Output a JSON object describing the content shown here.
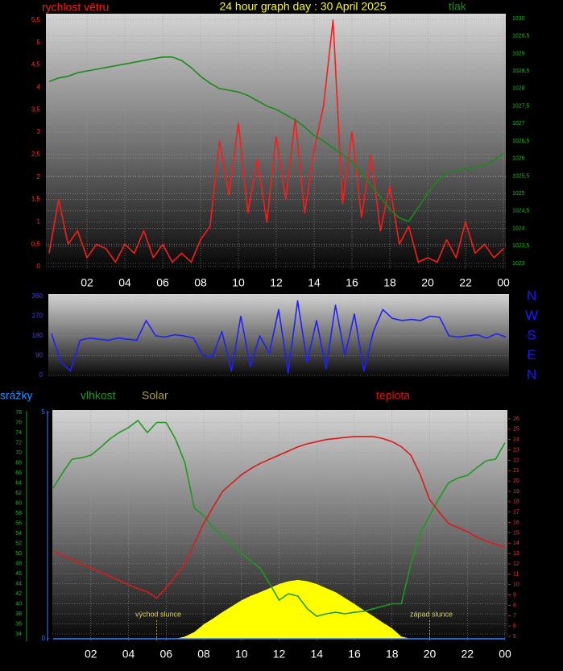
{
  "chart_data": [
    {
      "type": "line",
      "title": "24 hour graph day : 30 April 2025",
      "x": [
        0,
        0.5,
        1,
        1.5,
        2,
        2.5,
        3,
        3.5,
        4,
        4.5,
        5,
        5.5,
        6,
        6.5,
        7,
        7.5,
        8,
        8.5,
        9,
        9.5,
        10,
        10.5,
        11,
        11.5,
        12,
        12.5,
        13,
        13.5,
        14,
        14.5,
        15,
        15.5,
        16,
        16.5,
        17,
        17.5,
        18,
        18.5,
        19,
        19.5,
        20,
        20.5,
        21,
        21.5,
        22,
        22.5,
        23,
        23.5,
        24
      ],
      "xlim": [
        0,
        24
      ],
      "xticks": [
        {
          "value": 2,
          "label": "02"
        },
        {
          "value": 4,
          "label": "04"
        },
        {
          "value": 6,
          "label": "06"
        },
        {
          "value": 8,
          "label": "08"
        },
        10,
        12,
        14,
        16,
        18,
        20,
        22,
        {
          "value": 24,
          "label": "00"
        }
      ],
      "ylim": [
        0,
        5.5
      ],
      "yticks": [
        0,
        {
          "value": 0.5,
          "label": "0,5"
        },
        1,
        {
          "value": 1.5,
          "label": "1,5"
        },
        2,
        {
          "value": 2.5,
          "label": "2,5"
        },
        3,
        {
          "value": 3.5,
          "label": "3,5"
        },
        4,
        {
          "value": 4.5,
          "label": "4,5"
        },
        5,
        {
          "value": 5.5,
          "label": "5,5"
        }
      ],
      "y2lim": [
        1023,
        1030
      ],
      "y2ticks": [
        1023,
        {
          "value": 1023.5,
          "label": "1023,5"
        },
        1024,
        {
          "value": 1024.5,
          "label": "1024,5"
        },
        1025,
        {
          "value": 1025.5,
          "label": "1025,5"
        },
        1026,
        {
          "value": 1026.5,
          "label": "1026,5"
        },
        1027,
        {
          "value": 1027.5,
          "label": "1027,5"
        },
        1028,
        {
          "value": 1028.5,
          "label": "1028,5"
        },
        1029,
        {
          "value": 1029.5,
          "label": "1029,5"
        },
        1030
      ],
      "grid": true,
      "series": [
        {
          "name": "rychlost větru",
          "color": "#ff1a1a",
          "values": [
            0.3,
            1.5,
            0.5,
            0.8,
            0.2,
            0.5,
            0.4,
            0.1,
            0.5,
            0.3,
            0.8,
            0.2,
            0.5,
            0.1,
            0.3,
            0.1,
            0.6,
            0.9,
            2.8,
            1.6,
            3.2,
            1.2,
            2.4,
            1.0,
            2.9,
            1.5,
            3.3,
            1.2,
            2.6,
            3.6,
            5.5,
            1.4,
            3.0,
            1.1,
            2.5,
            0.8,
            1.8,
            0.5,
            0.9,
            0.1,
            0.2,
            0.1,
            0.6,
            0.2,
            1.0,
            0.3,
            0.5,
            0.2,
            0.4
          ]
        },
        {
          "name": "tlak",
          "color": "#1a8a1a",
          "axis": "y2",
          "values": [
            1028.2,
            1028.3,
            1028.35,
            1028.45,
            1028.5,
            1028.55,
            1028.6,
            1028.65,
            1028.7,
            1028.75,
            1028.8,
            1028.85,
            1028.9,
            1028.9,
            1028.8,
            1028.6,
            1028.35,
            1028.15,
            1028.0,
            1027.95,
            1027.9,
            1027.8,
            1027.65,
            1027.5,
            1027.4,
            1027.25,
            1027.1,
            1026.9,
            1026.65,
            1026.5,
            1026.3,
            1026.1,
            1025.9,
            1025.6,
            1025.25,
            1024.9,
            1024.55,
            1024.3,
            1024.2,
            1024.6,
            1025.0,
            1025.35,
            1025.6,
            1025.65,
            1025.7,
            1025.75,
            1025.8,
            1025.95,
            1026.15
          ]
        }
      ]
    },
    {
      "type": "line",
      "x": [
        0,
        0.5,
        1,
        1.5,
        2,
        2.5,
        3,
        3.5,
        4,
        4.5,
        5,
        5.5,
        6,
        6.5,
        7,
        7.5,
        8,
        8.5,
        9,
        9.5,
        10,
        10.5,
        11,
        11.5,
        12,
        12.5,
        13,
        13.5,
        14,
        14.5,
        15,
        15.5,
        16,
        16.5,
        17,
        17.5,
        18,
        18.5,
        19,
        19.5,
        20,
        20.5,
        21,
        21.5,
        22,
        22.5,
        23,
        23.5,
        24
      ],
      "xlim": [
        0,
        24
      ],
      "ylim": [
        0,
        360
      ],
      "yticks": [
        0,
        90,
        180,
        270,
        360
      ],
      "y2lim": [
        0,
        360
      ],
      "y2ticks": [
        {
          "value": 360,
          "label": "N"
        },
        {
          "value": 270,
          "label": "W"
        },
        {
          "value": 180,
          "label": "S"
        },
        {
          "value": 90,
          "label": "E"
        },
        {
          "value": 0,
          "label": "N"
        }
      ],
      "grid": true,
      "color": "#2020ff",
      "values": [
        190,
        60,
        20,
        160,
        170,
        165,
        160,
        170,
        165,
        160,
        250,
        180,
        175,
        185,
        180,
        170,
        90,
        85,
        200,
        20,
        270,
        40,
        180,
        100,
        300,
        10,
        340,
        60,
        250,
        30,
        320,
        90,
        280,
        20,
        200,
        300,
        260,
        250,
        255,
        250,
        270,
        265,
        180,
        175,
        180,
        185,
        170,
        190,
        175
      ]
    },
    {
      "type": "line",
      "x": [
        0,
        0.5,
        1,
        1.5,
        2,
        2.5,
        3,
        3.5,
        4,
        4.5,
        5,
        5.5,
        6,
        6.5,
        7,
        7.5,
        8,
        8.5,
        9,
        9.5,
        10,
        10.5,
        11,
        11.5,
        12,
        12.5,
        13,
        13.5,
        14,
        14.5,
        15,
        15.5,
        16,
        16.5,
        17,
        17.5,
        18,
        18.5,
        19,
        19.5,
        20,
        20.5,
        21,
        21.5,
        22,
        22.5,
        23,
        23.5,
        24
      ],
      "xlim": [
        0,
        24
      ],
      "xticks": [
        {
          "value": 2,
          "label": "02"
        },
        {
          "value": 4,
          "label": "04"
        },
        {
          "value": 6,
          "label": "06"
        },
        {
          "value": 8,
          "label": "08"
        },
        10,
        12,
        14,
        16,
        18,
        20,
        22,
        {
          "value": 24,
          "label": "00"
        }
      ],
      "ylim": [
        34,
        78
      ],
      "yticks": [
        34,
        36,
        38,
        40,
        42,
        44,
        46,
        48,
        50,
        52,
        54,
        56,
        58,
        60,
        62,
        64,
        66,
        68,
        70,
        72,
        74,
        76,
        78
      ],
      "y2lim": [
        5,
        26
      ],
      "y2ticks": [
        5,
        6,
        7,
        8,
        9,
        10,
        11,
        12,
        13,
        14,
        15,
        16,
        17,
        18,
        19,
        20,
        21,
        22,
        23,
        24,
        25,
        26
      ],
      "y3lim": [
        0,
        5
      ],
      "y3ticks": [
        0,
        5
      ],
      "grid": true,
      "series": [
        {
          "name": "Solar",
          "color": "#ffff00",
          "axis": "y3",
          "style": "area",
          "values": [
            0,
            0,
            0,
            0,
            0,
            0,
            0,
            0,
            0,
            0,
            0,
            0,
            0,
            0,
            0.05,
            0.15,
            0.32,
            0.45,
            0.59,
            0.72,
            0.85,
            0.95,
            1.03,
            1.12,
            1.21,
            1.27,
            1.3,
            1.27,
            1.21,
            1.12,
            1.03,
            0.9,
            0.77,
            0.63,
            0.5,
            0.36,
            0.23,
            0.05,
            0,
            0,
            0,
            0,
            0,
            0,
            0,
            0,
            0,
            0,
            0
          ]
        },
        {
          "name": "srážky",
          "color": "#3a7bff",
          "axis": "y3",
          "values": [
            0,
            0,
            0,
            0,
            0,
            0,
            0,
            0,
            0,
            0,
            0,
            0,
            0,
            0,
            0,
            0,
            0,
            0,
            0,
            0,
            0,
            0,
            0,
            0,
            0,
            0,
            0,
            0,
            0,
            0,
            0,
            0,
            0,
            0,
            0,
            0,
            0,
            0,
            0,
            0,
            0,
            0,
            0,
            0,
            0,
            0,
            0,
            0,
            0
          ]
        },
        {
          "name": "vlhkost",
          "color": "#1e9a1e",
          "values": [
            63,
            66,
            68.7,
            69,
            69.5,
            71,
            72.7,
            74,
            75,
            76.4,
            74,
            76,
            76,
            72.7,
            68,
            59,
            57.5,
            55,
            53.5,
            52,
            50,
            48.5,
            47,
            44,
            40.7,
            42,
            41.5,
            39,
            37.5,
            38,
            38.3,
            38,
            38.3,
            38.5,
            39,
            39.5,
            40,
            40,
            48,
            54,
            57.5,
            61,
            64,
            65,
            65.5,
            67,
            68.4,
            68.7,
            72
          ]
        },
        {
          "name": "teplota",
          "color": "#dd1a1a",
          "axis": "y2",
          "values": [
            13.2,
            12.8,
            12.4,
            12,
            11.6,
            11.2,
            10.8,
            10.4,
            10,
            9.6,
            9.3,
            8.7,
            9.7,
            10.8,
            12,
            14,
            15.9,
            17.5,
            19,
            19.8,
            20.6,
            21.2,
            21.7,
            22.1,
            22.5,
            22.9,
            23.3,
            23.6,
            23.8,
            24,
            24.1,
            24.2,
            24.3,
            24.3,
            24.3,
            24.1,
            23.8,
            23.3,
            22.5,
            20.6,
            18.2,
            17,
            15.9,
            15.5,
            15.1,
            14.6,
            14.2,
            13.9,
            13.6
          ]
        }
      ],
      "annotations": [
        {
          "text": "východ slunce",
          "x": 5.5
        },
        {
          "text": "západ slunce",
          "x": 20
        }
      ]
    }
  ]
}
